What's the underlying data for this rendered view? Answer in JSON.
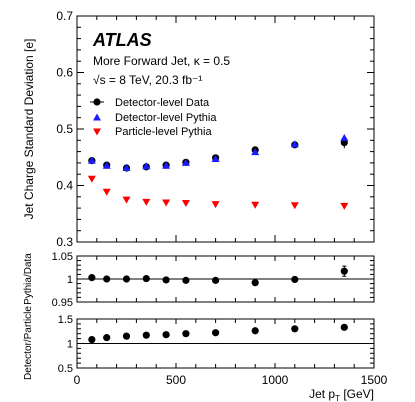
{
  "experiment": "ATLAS",
  "info_lines": [
    "More Forward Jet, κ = 0.5",
    "√s = 8 TeV, 20.3 fb⁻¹"
  ],
  "colors": {
    "data": "#000000",
    "detector_pythia": "#1a1aff",
    "particle_pythia": "#ff0000",
    "unity_line": "#000000"
  },
  "chart_data": [
    {
      "type": "scatter",
      "panel": "main",
      "ylabel": "Jet Charge Standard Deviation [e]",
      "ylim": [
        0.3,
        0.7
      ],
      "yticks": [
        "0.3",
        "0.4",
        "0.5",
        "0.6",
        "0.7"
      ],
      "xlim": [
        0,
        1500
      ],
      "legend_position": "top-left",
      "x": [
        75,
        150,
        250,
        350,
        450,
        550,
        700,
        900,
        1100,
        1350
      ],
      "series": [
        {
          "name": "Detector-level Data",
          "marker": "circle",
          "color": "#000000",
          "values": [
            0.444,
            0.436,
            0.431,
            0.433,
            0.436,
            0.441,
            0.449,
            0.463,
            0.472,
            0.476
          ],
          "errors": [
            0.003,
            0.003,
            0.003,
            0.003,
            0.003,
            0.004,
            0.004,
            0.005,
            0.006,
            0.01
          ]
        },
        {
          "name": "Detector-level Pythia",
          "marker": "triangle-up",
          "color": "#1a1aff",
          "values": [
            0.444,
            0.435,
            0.431,
            0.434,
            0.435,
            0.44,
            0.447,
            0.459,
            0.473,
            0.484
          ]
        },
        {
          "name": "Particle-level Pythia",
          "marker": "triangle-down",
          "color": "#ff0000",
          "values": [
            0.412,
            0.389,
            0.375,
            0.371,
            0.37,
            0.369,
            0.367,
            0.366,
            0.365,
            0.364
          ]
        }
      ]
    },
    {
      "type": "scatter",
      "panel": "ratio",
      "ylabel": "Pythia/Data",
      "ylim": [
        0.95,
        1.05
      ],
      "yticks": [
        "0.95",
        "1",
        "1.05"
      ],
      "reference_line": 1,
      "x": [
        75,
        150,
        250,
        350,
        450,
        550,
        700,
        900,
        1100,
        1350
      ],
      "values": [
        1.003,
        1.0,
        1.0,
        1.001,
        0.998,
        0.997,
        0.997,
        0.992,
        0.999,
        1.017
      ],
      "errors": [
        0.003,
        0.003,
        0.003,
        0.003,
        0.003,
        0.003,
        0.003,
        0.003,
        0.004,
        0.011
      ]
    },
    {
      "type": "scatter",
      "panel": "ratio",
      "ylabel": "Detector/Particle",
      "ylim": [
        0.5,
        1.5
      ],
      "yticks": [
        "0.5",
        "1",
        "1.5"
      ],
      "reference_line": 1,
      "x": [
        75,
        150,
        250,
        350,
        450,
        550,
        700,
        900,
        1100,
        1350
      ],
      "values": [
        1.08,
        1.12,
        1.15,
        1.17,
        1.18,
        1.2,
        1.22,
        1.26,
        1.3,
        1.33
      ]
    }
  ],
  "xaxis": {
    "label_prefix": "Jet p",
    "label_sub": "T",
    "label_suffix": " [GeV]",
    "ticks": [
      "0",
      "500",
      "1000",
      "1500"
    ]
  }
}
